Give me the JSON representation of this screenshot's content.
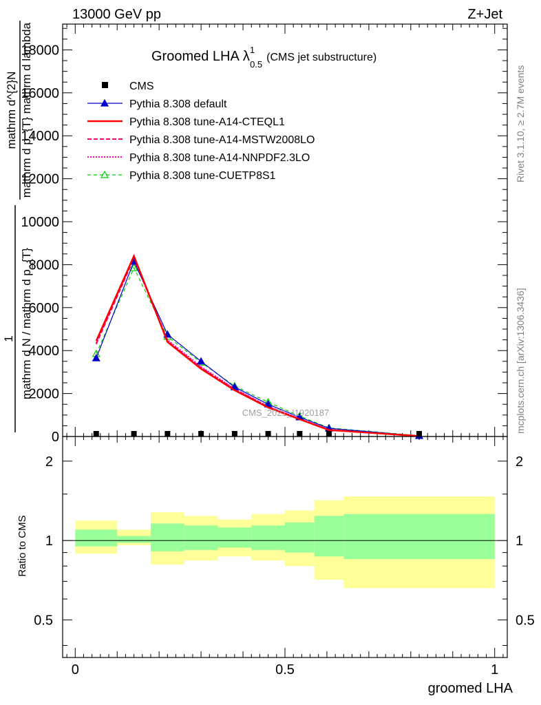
{
  "header": {
    "left": "13000 GeV pp",
    "right": "Z+Jet"
  },
  "title": {
    "main": "Groomed LHA",
    "symbol": "λ",
    "sup": "1",
    "sub": "0.5",
    "note": "(CMS jet substructure)"
  },
  "side_text": {
    "rivet": "Rivet 3.1.10, ≥ 2.7M events",
    "mcplots": "mcplots.cern.ch [arXiv:1306.3436]"
  },
  "watermark": "CMS_2021_I1920187",
  "upper_ylabel": {
    "top": "mathrm d^{2}N",
    "top2": "mathrm d p_{T} mathrm d lambda",
    "one": "1",
    "bottom": "mathrm d N / mathrm d p_{T}"
  },
  "ratio_ylabel": "Ratio to CMS",
  "xlabel": "groomed LHA",
  "colors": {
    "data": "#000000",
    "default": "#0000cc",
    "cteql1": "#ff0000",
    "mstw": "#ff0066",
    "nnpdf": "#ff00cc",
    "cuetp": "#00cc00",
    "band_outer": "#ffff99",
    "band_inner": "#99ff99"
  },
  "chart_data": [
    {
      "type": "line",
      "xlim": [
        -0.03,
        1.03
      ],
      "ylim": [
        0,
        19200
      ],
      "yticks": [
        0,
        2000,
        4000,
        6000,
        8000,
        10000,
        12000,
        14000,
        16000,
        18000
      ],
      "ytick_labels": [
        "0",
        "2000",
        "4000",
        "6000",
        "8000",
        "10000",
        "12000",
        "14000",
        "16000",
        "18000"
      ],
      "x": [
        0.05,
        0.14,
        0.22,
        0.3,
        0.38,
        0.46,
        0.535,
        0.605,
        0.82
      ],
      "series": [
        {
          "name": "CMS",
          "style": "data",
          "values": [
            0,
            0,
            0,
            0,
            0,
            0,
            0,
            0,
            0
          ]
        },
        {
          "name": "Pythia 8.308 default",
          "style": "default",
          "values": [
            3650,
            8150,
            4750,
            3500,
            2300,
            1500,
            900,
            380,
            30
          ]
        },
        {
          "name": "Pythia 8.308 tune-A14-CTEQL1",
          "style": "cteql1",
          "values": [
            4450,
            8400,
            4400,
            3150,
            2150,
            1350,
            800,
            300,
            20
          ]
        },
        {
          "name": "Pythia 8.308 tune-A14-MSTW2008LO",
          "style": "mstw",
          "values": [
            4300,
            8300,
            4450,
            3200,
            2200,
            1380,
            820,
            310,
            20
          ]
        },
        {
          "name": "Pythia 8.308 tune-A14-NNPDF2.3LO",
          "style": "nnpdf",
          "values": [
            4350,
            8350,
            4500,
            3250,
            2220,
            1400,
            830,
            320,
            20
          ]
        },
        {
          "name": "Pythia 8.308 tune-CUETP8S1",
          "style": "cuetp",
          "values": [
            3850,
            7850,
            4650,
            3450,
            2350,
            1600,
            950,
            400,
            40
          ]
        }
      ]
    },
    {
      "type": "area",
      "xlabel": "groomed LHA",
      "ylabel": "Ratio to CMS",
      "xlim": [
        -0.03,
        1.03
      ],
      "ylim": [
        0.36,
        2.48
      ],
      "xticks": [
        0,
        0.5,
        1
      ],
      "xtick_labels": [
        "0",
        "0.5",
        "1"
      ],
      "yticks": [
        0.5,
        1,
        2
      ],
      "ytick_labels": [
        "0.5",
        "1",
        "2"
      ],
      "bins": [
        {
          "x0": 0.0,
          "x1": 0.1,
          "outer": [
            0.89,
            1.19
          ],
          "inner": [
            0.95,
            1.1
          ]
        },
        {
          "x0": 0.1,
          "x1": 0.18,
          "outer": [
            0.96,
            1.1
          ],
          "inner": [
            0.98,
            1.04
          ]
        },
        {
          "x0": 0.18,
          "x1": 0.26,
          "outer": [
            0.81,
            1.28
          ],
          "inner": [
            0.91,
            1.16
          ]
        },
        {
          "x0": 0.26,
          "x1": 0.34,
          "outer": [
            0.84,
            1.24
          ],
          "inner": [
            0.92,
            1.14
          ]
        },
        {
          "x0": 0.34,
          "x1": 0.42,
          "outer": [
            0.87,
            1.2
          ],
          "inner": [
            0.94,
            1.12
          ]
        },
        {
          "x0": 0.42,
          "x1": 0.5,
          "outer": [
            0.84,
            1.26
          ],
          "inner": [
            0.92,
            1.14
          ]
        },
        {
          "x0": 0.5,
          "x1": 0.57,
          "outer": [
            0.8,
            1.3
          ],
          "inner": [
            0.9,
            1.17
          ]
        },
        {
          "x0": 0.57,
          "x1": 0.64,
          "outer": [
            0.71,
            1.42
          ],
          "inner": [
            0.87,
            1.24
          ]
        },
        {
          "x0": 0.64,
          "x1": 1.0,
          "outer": [
            0.66,
            1.47
          ],
          "inner": [
            0.85,
            1.26
          ]
        }
      ]
    }
  ]
}
